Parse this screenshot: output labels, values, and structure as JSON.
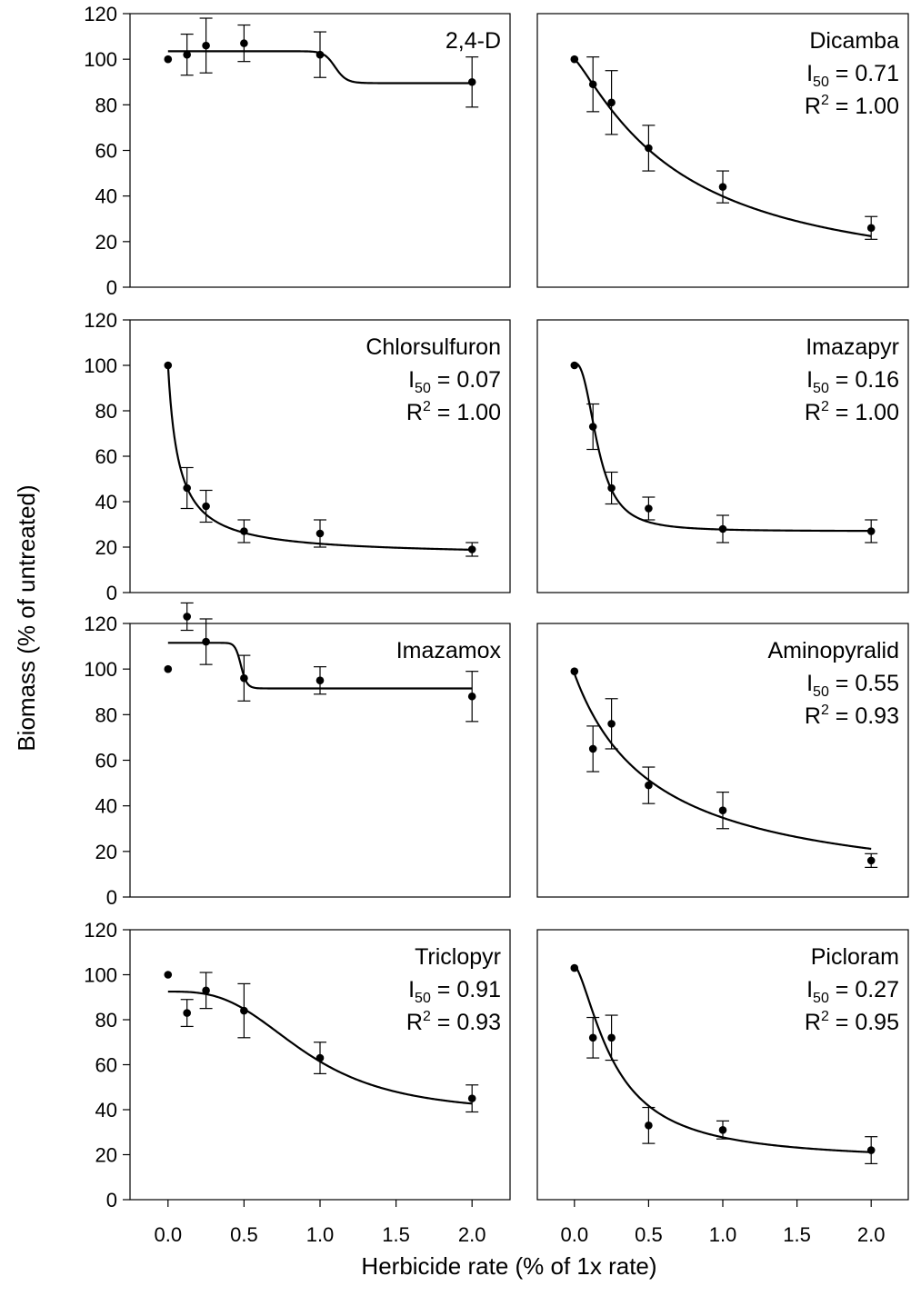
{
  "ylabel": "Biomass (% of untreated)",
  "xlabel": "Herbicide rate (% of 1x rate)",
  "chart_data": [
    {
      "type": "scatter",
      "title": "2,4-D",
      "i50": "",
      "r2": "",
      "x": [
        0,
        0.125,
        0.25,
        0.5,
        1.0,
        2.0
      ],
      "y": [
        100,
        102,
        106,
        107,
        102,
        90
      ],
      "err": [
        0,
        9,
        12,
        8,
        10,
        11
      ],
      "fit": {
        "model": "sigmoid",
        "top": 103.5,
        "bottom": 89.5,
        "x50": 1.1,
        "hill": 30
      },
      "xlim": [
        -0.25,
        2.25
      ],
      "ylim": [
        0,
        120
      ],
      "yticks": [
        0,
        20,
        40,
        60,
        80,
        100,
        120
      ]
    },
    {
      "type": "scatter",
      "title": "Dicamba",
      "i50": "0.71",
      "r2": "1.00",
      "x": [
        0,
        0.125,
        0.25,
        0.5,
        1.0,
        2.0
      ],
      "y": [
        100,
        89,
        81,
        61,
        44,
        26
      ],
      "err": [
        0,
        12,
        14,
        10,
        7,
        5
      ],
      "fit": {
        "model": "sigmoid",
        "top": 100,
        "bottom": 0,
        "x50": 0.71,
        "hill": 1.2
      },
      "xlim": [
        -0.25,
        2.25
      ],
      "ylim": [
        0,
        120
      ]
    },
    {
      "type": "scatter",
      "title": "Chlorsulfuron",
      "i50": "0.07",
      "r2": "1.00",
      "x": [
        0,
        0.125,
        0.25,
        0.5,
        1.0,
        2.0
      ],
      "y": [
        100,
        46,
        38,
        27,
        26,
        19
      ],
      "err": [
        0,
        9,
        7,
        5,
        6,
        3
      ],
      "fit": {
        "model": "sigmoid",
        "top": 100,
        "bottom": 16,
        "x50": 0.07,
        "hill": 1.0
      },
      "xlim": [
        -0.25,
        2.25
      ],
      "ylim": [
        0,
        120
      ],
      "yticks": [
        0,
        20,
        40,
        60,
        80,
        100,
        120
      ]
    },
    {
      "type": "scatter",
      "title": "Imazapyr",
      "i50": "0.16",
      "r2": "1.00",
      "x": [
        0,
        0.125,
        0.25,
        0.5,
        1.0,
        2.0
      ],
      "y": [
        100,
        73,
        46,
        37,
        28,
        27
      ],
      "err": [
        0,
        10,
        7,
        5,
        6,
        5
      ],
      "fit": {
        "model": "sigmoid",
        "top": 101,
        "bottom": 27,
        "x50": 0.16,
        "hill": 2.5
      },
      "xlim": [
        -0.25,
        2.25
      ],
      "ylim": [
        0,
        120
      ]
    },
    {
      "type": "scatter",
      "title": "Imazamox",
      "i50": "",
      "r2": "",
      "x": [
        0,
        0.125,
        0.25,
        0.5,
        1.0,
        2.0
      ],
      "y": [
        100,
        123,
        112,
        96,
        95,
        88
      ],
      "err": [
        0,
        6,
        10,
        10,
        6,
        11
      ],
      "fit": {
        "model": "sigmoid",
        "top": 111.5,
        "bottom": 91.5,
        "x50": 0.48,
        "hill": 25
      },
      "xlim": [
        -0.25,
        2.25
      ],
      "ylim": [
        0,
        120
      ],
      "yticks": [
        0,
        20,
        40,
        60,
        80,
        100,
        120
      ]
    },
    {
      "type": "scatter",
      "title": "Aminopyralid",
      "i50": "0.55",
      "r2": "0.93",
      "x": [
        0,
        0.125,
        0.25,
        0.5,
        1.0,
        2.0
      ],
      "y": [
        99,
        65,
        76,
        49,
        38,
        16
      ],
      "err": [
        0,
        10,
        11,
        8,
        8,
        3
      ],
      "fit": {
        "model": "sigmoid",
        "top": 98,
        "bottom": 0,
        "x50": 0.55,
        "hill": 1.0
      },
      "xlim": [
        -0.25,
        2.25
      ],
      "ylim": [
        0,
        120
      ]
    },
    {
      "type": "scatter",
      "title": "Triclopyr",
      "i50": "0.91",
      "r2": "0.93",
      "x": [
        0,
        0.125,
        0.25,
        0.5,
        1.0,
        2.0
      ],
      "y": [
        100,
        83,
        93,
        84,
        63,
        45
      ],
      "err": [
        0,
        6,
        8,
        12,
        7,
        6
      ],
      "fit": {
        "model": "sigmoid",
        "top": 92.5,
        "bottom": 38,
        "x50": 0.91,
        "hill": 3.0
      },
      "xlim": [
        -0.25,
        2.25
      ],
      "ylim": [
        0,
        120
      ],
      "yticks": [
        0,
        20,
        40,
        60,
        80,
        100,
        120
      ],
      "xticks": [
        0.0,
        0.5,
        1.0,
        1.5,
        2.0
      ],
      "xticklabels": [
        "0.0",
        "0.5",
        "1.0",
        "1.5",
        "2.0"
      ]
    },
    {
      "type": "scatter",
      "title": "Picloram",
      "i50": "0.27",
      "r2": "0.95",
      "x": [
        0,
        0.125,
        0.25,
        0.5,
        1.0,
        2.0
      ],
      "y": [
        103,
        72,
        72,
        33,
        31,
        22
      ],
      "err": [
        0,
        9,
        10,
        8,
        4,
        6
      ],
      "fit": {
        "model": "sigmoid",
        "top": 104,
        "bottom": 17,
        "x50": 0.27,
        "hill": 1.5
      },
      "xlim": [
        -0.25,
        2.25
      ],
      "ylim": [
        0,
        120
      ],
      "xticks": [
        0.0,
        0.5,
        1.0,
        1.5,
        2.0
      ],
      "xticklabels": [
        "0.0",
        "0.5",
        "1.0",
        "1.5",
        "2.0"
      ]
    }
  ]
}
